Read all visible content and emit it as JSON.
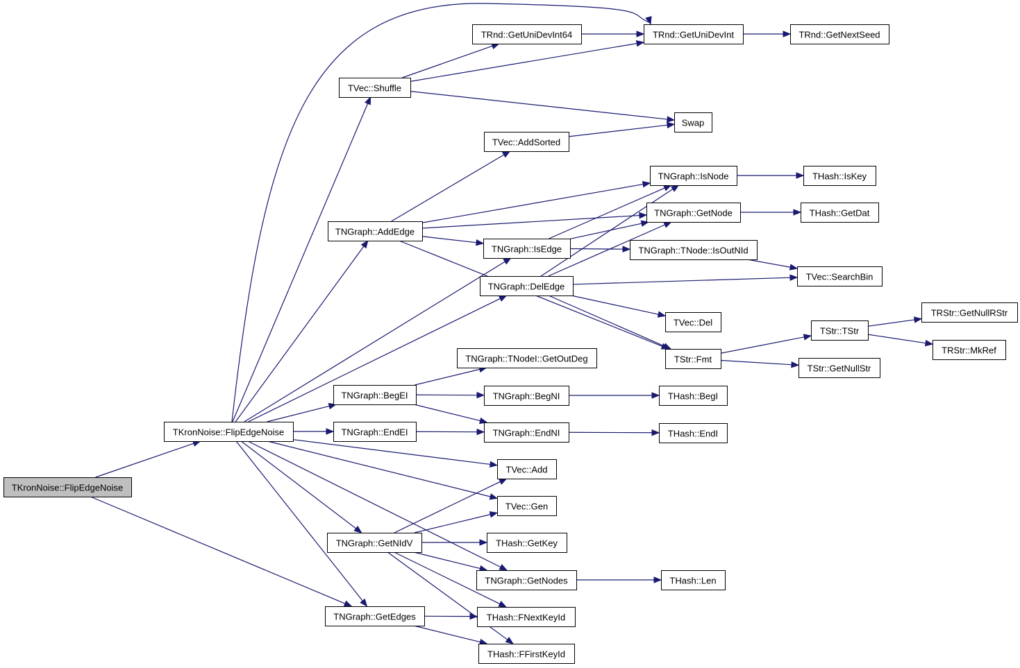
{
  "diagram": {
    "type": "call-graph",
    "colors": {
      "edge": "#191970",
      "root_fill": "#bfbfbf",
      "node_fill": "#ffffff"
    },
    "nodes": [
      {
        "id": "root",
        "label": "TKronNoise::FlipEdgeNoise",
        "root": true
      },
      {
        "id": "fen",
        "label": "TKronNoise::FlipEdgeNoise"
      },
      {
        "id": "shuffle",
        "label": "TVec::Shuffle"
      },
      {
        "id": "getunidevint64",
        "label": "TRnd::GetUniDevInt64"
      },
      {
        "id": "getunidevint",
        "label": "TRnd::GetUniDevInt"
      },
      {
        "id": "getnextseed",
        "label": "TRnd::GetNextSeed"
      },
      {
        "id": "swap",
        "label": "Swap"
      },
      {
        "id": "addsorted",
        "label": "TVec::AddSorted"
      },
      {
        "id": "isnode",
        "label": "TNGraph::IsNode"
      },
      {
        "id": "iskey",
        "label": "THash::IsKey"
      },
      {
        "id": "getnode",
        "label": "TNGraph::GetNode"
      },
      {
        "id": "getdat",
        "label": "THash::GetDat"
      },
      {
        "id": "addedge",
        "label": "TNGraph::AddEdge"
      },
      {
        "id": "isedge",
        "label": "TNGraph::IsEdge"
      },
      {
        "id": "isoutnid",
        "label": "TNGraph::TNode::IsOutNId"
      },
      {
        "id": "deledge",
        "label": "TNGraph::DelEdge"
      },
      {
        "id": "searchbin",
        "label": "TVec::SearchBin"
      },
      {
        "id": "vecdel",
        "label": "TVec::Del"
      },
      {
        "id": "fmt",
        "label": "TStr::Fmt"
      },
      {
        "id": "tstr",
        "label": "TStr::TStr"
      },
      {
        "id": "getnullrstr",
        "label": "TRStr::GetNullRStr"
      },
      {
        "id": "mkref",
        "label": "TRStr::MkRef"
      },
      {
        "id": "getnullstr",
        "label": "TStr::GetNullStr"
      },
      {
        "id": "getoutdeg",
        "label": "TNGraph::TNodeI::GetOutDeg"
      },
      {
        "id": "begei",
        "label": "TNGraph::BegEI"
      },
      {
        "id": "begni",
        "label": "TNGraph::BegNI"
      },
      {
        "id": "hbegi",
        "label": "THash::BegI"
      },
      {
        "id": "endei",
        "label": "TNGraph::EndEI"
      },
      {
        "id": "endni",
        "label": "TNGraph::EndNI"
      },
      {
        "id": "hendi",
        "label": "THash::EndI"
      },
      {
        "id": "vecadd",
        "label": "TVec::Add"
      },
      {
        "id": "vecgen",
        "label": "TVec::Gen"
      },
      {
        "id": "getnidv",
        "label": "TNGraph::GetNIdV"
      },
      {
        "id": "getkey",
        "label": "THash::GetKey"
      },
      {
        "id": "getnodes",
        "label": "TNGraph::GetNodes"
      },
      {
        "id": "len",
        "label": "THash::Len"
      },
      {
        "id": "getedges",
        "label": "TNGraph::GetEdges"
      },
      {
        "id": "fnextkeyid",
        "label": "THash::FNextKeyId"
      },
      {
        "id": "ffirstkeyid",
        "label": "THash::FFirstKeyId"
      }
    ],
    "edges": [
      [
        "root",
        "fen"
      ],
      [
        "root",
        "getedges"
      ],
      [
        "fen",
        "shuffle"
      ],
      [
        "fen",
        "getunidevint"
      ],
      [
        "fen",
        "addedge"
      ],
      [
        "fen",
        "isedge"
      ],
      [
        "fen",
        "deledge"
      ],
      [
        "fen",
        "begei"
      ],
      [
        "fen",
        "endei"
      ],
      [
        "fen",
        "vecadd"
      ],
      [
        "fen",
        "vecgen"
      ],
      [
        "fen",
        "getnidv"
      ],
      [
        "fen",
        "getnodes"
      ],
      [
        "fen",
        "getedges"
      ],
      [
        "shuffle",
        "getunidevint64"
      ],
      [
        "shuffle",
        "getunidevint"
      ],
      [
        "shuffle",
        "swap"
      ],
      [
        "getunidevint64",
        "getunidevint"
      ],
      [
        "getunidevint",
        "getnextseed"
      ],
      [
        "addsorted",
        "swap"
      ],
      [
        "addedge",
        "addsorted"
      ],
      [
        "addedge",
        "isnode"
      ],
      [
        "addedge",
        "getnode"
      ],
      [
        "addedge",
        "isedge"
      ],
      [
        "addedge",
        "fmt"
      ],
      [
        "isedge",
        "isnode"
      ],
      [
        "isedge",
        "getnode"
      ],
      [
        "isedge",
        "isoutnid"
      ],
      [
        "isnode",
        "iskey"
      ],
      [
        "getnode",
        "getdat"
      ],
      [
        "isoutnid",
        "searchbin"
      ],
      [
        "deledge",
        "isnode"
      ],
      [
        "deledge",
        "getnode"
      ],
      [
        "deledge",
        "searchbin"
      ],
      [
        "deledge",
        "vecdel"
      ],
      [
        "deledge",
        "fmt"
      ],
      [
        "fmt",
        "tstr"
      ],
      [
        "fmt",
        "getnullstr"
      ],
      [
        "tstr",
        "getnullrstr"
      ],
      [
        "tstr",
        "mkref"
      ],
      [
        "begei",
        "getoutdeg"
      ],
      [
        "begei",
        "begni"
      ],
      [
        "begei",
        "endni"
      ],
      [
        "begni",
        "hbegi"
      ],
      [
        "endei",
        "endni"
      ],
      [
        "endni",
        "hendi"
      ],
      [
        "getnidv",
        "vecadd"
      ],
      [
        "getnidv",
        "vecgen"
      ],
      [
        "getnidv",
        "getkey"
      ],
      [
        "getnidv",
        "getnodes"
      ],
      [
        "getnidv",
        "fnextkeyid"
      ],
      [
        "getnidv",
        "ffirstkeyid"
      ],
      [
        "getnodes",
        "len"
      ],
      [
        "getedges",
        "fnextkeyid"
      ],
      [
        "getedges",
        "ffirstkeyid"
      ]
    ]
  }
}
